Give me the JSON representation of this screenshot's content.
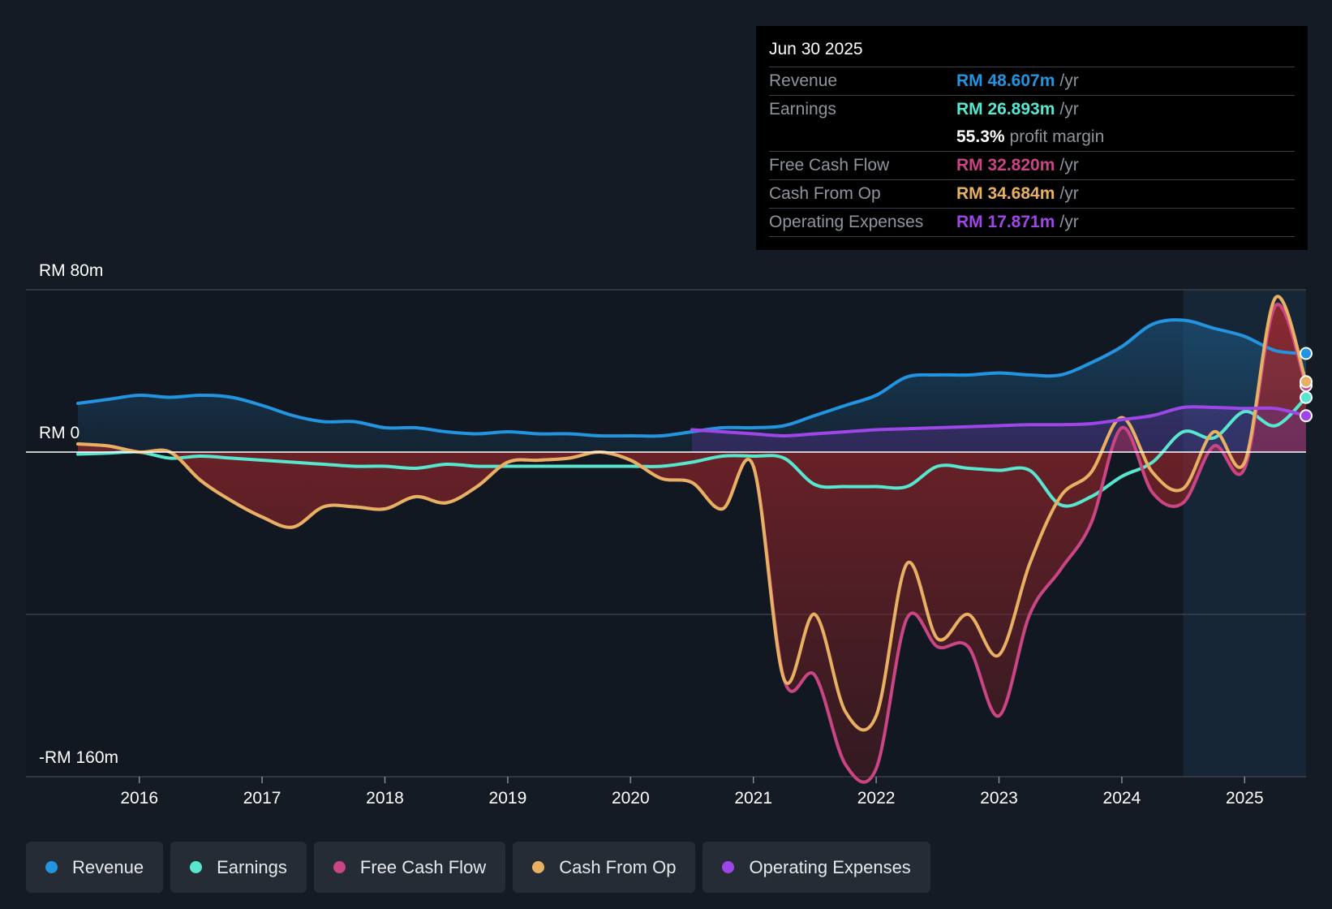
{
  "chart_data": {
    "type": "line",
    "title": "",
    "ylim": [
      -160,
      80
    ],
    "y_axis_labels": [
      "RM 80m",
      "RM 0",
      "-RM 160m"
    ],
    "x_ticks": [
      2016,
      2017,
      2018,
      2019,
      2020,
      2021,
      2022,
      2023,
      2024,
      2025
    ],
    "x_range": [
      2015.5,
      2025.5
    ],
    "forecast_start": 2024.5,
    "series": [
      {
        "name": "Revenue",
        "color": "#2394df",
        "fill": true,
        "x": [
          2015.5,
          2015.75,
          2016.0,
          2016.25,
          2016.5,
          2016.75,
          2017.0,
          2017.25,
          2017.5,
          2017.75,
          2018.0,
          2018.25,
          2018.5,
          2018.75,
          2019.0,
          2019.25,
          2019.5,
          2019.75,
          2020.0,
          2020.25,
          2020.5,
          2020.75,
          2021.0,
          2021.25,
          2021.5,
          2021.75,
          2022.0,
          2022.25,
          2022.5,
          2022.75,
          2023.0,
          2023.25,
          2023.5,
          2023.75,
          2024.0,
          2024.25,
          2024.5,
          2024.75,
          2025.0,
          2025.25,
          2025.5
        ],
        "values": [
          24,
          26,
          28,
          27,
          28,
          27,
          23,
          18,
          15,
          15,
          12,
          12,
          10,
          9,
          10,
          9,
          9,
          8,
          8,
          8,
          10,
          12,
          12,
          13,
          18,
          23,
          28,
          37,
          38,
          38,
          39,
          38,
          38,
          44,
          52,
          63,
          65,
          61,
          57,
          50,
          48.6
        ]
      },
      {
        "name": "Earnings",
        "color": "#58e6cf",
        "fill": false,
        "x": [
          2015.5,
          2015.75,
          2016.0,
          2016.25,
          2016.5,
          2016.75,
          2017.0,
          2017.25,
          2017.5,
          2017.75,
          2018.0,
          2018.25,
          2018.5,
          2018.75,
          2019.0,
          2019.25,
          2019.5,
          2019.75,
          2020.0,
          2020.25,
          2020.5,
          2020.75,
          2021.0,
          2021.25,
          2021.5,
          2021.75,
          2022.0,
          2022.25,
          2022.5,
          2022.75,
          2023.0,
          2023.25,
          2023.5,
          2023.75,
          2024.0,
          2024.25,
          2024.5,
          2024.75,
          2025.0,
          2025.25,
          2025.5
        ],
        "values": [
          -1,
          -0.5,
          0,
          -3,
          -2,
          -3,
          -4,
          -5,
          -6,
          -7,
          -7,
          -8,
          -6,
          -7,
          -7,
          -7,
          -7,
          -7,
          -7,
          -7,
          -5,
          -2,
          -2,
          -3,
          -16,
          -17,
          -17,
          -17,
          -7,
          -8,
          -9,
          -9,
          -26,
          -22,
          -12,
          -5,
          10,
          7,
          20,
          13,
          26.9
        ]
      },
      {
        "name": "Free Cash Flow",
        "color": "#c94583",
        "fill": true,
        "x": [
          2015.5,
          2015.75,
          2016.0,
          2016.25,
          2016.5,
          2016.75,
          2017.0,
          2017.25,
          2017.5,
          2017.75,
          2018.0,
          2018.25,
          2018.5,
          2018.75,
          2019.0,
          2019.25,
          2019.5,
          2019.75,
          2020.0,
          2020.25,
          2020.5,
          2020.75,
          2021.0,
          2021.25,
          2021.5,
          2021.75,
          2022.0,
          2022.25,
          2022.5,
          2022.75,
          2023.0,
          2023.25,
          2023.5,
          2023.75,
          2024.0,
          2024.25,
          2024.5,
          2024.75,
          2025.0,
          2025.25,
          2025.5
        ],
        "values": [
          4,
          3,
          0,
          0,
          -14,
          -24,
          -32,
          -37,
          -27,
          -27,
          -28,
          -22,
          -25,
          -17,
          -5,
          -4,
          -3,
          0,
          -4,
          -13,
          -15,
          -28,
          -7,
          -112,
          -110,
          -154,
          -156,
          -82,
          -96,
          -96,
          -130,
          -80,
          -58,
          -35,
          12,
          -20,
          -25,
          3,
          -8,
          72,
          32.8
        ]
      },
      {
        "name": "Cash From Op",
        "color": "#e8b062",
        "fill": false,
        "x": [
          2015.5,
          2015.75,
          2016.0,
          2016.25,
          2016.5,
          2016.75,
          2017.0,
          2017.25,
          2017.5,
          2017.75,
          2018.0,
          2018.25,
          2018.5,
          2018.75,
          2019.0,
          2019.25,
          2019.5,
          2019.75,
          2020.0,
          2020.25,
          2020.5,
          2020.75,
          2021.0,
          2021.25,
          2021.5,
          2021.75,
          2022.0,
          2022.25,
          2022.5,
          2022.75,
          2023.0,
          2023.25,
          2023.5,
          2023.75,
          2024.0,
          2024.25,
          2024.5,
          2024.75,
          2025.0,
          2025.25,
          2025.5
        ],
        "values": [
          4,
          3,
          0,
          0,
          -14,
          -24,
          -32,
          -37,
          -27,
          -27,
          -28,
          -22,
          -25,
          -17,
          -5,
          -4,
          -3,
          0,
          -4,
          -13,
          -15,
          -28,
          -7,
          -112,
          -80,
          -128,
          -130,
          -55,
          -92,
          -80,
          -100,
          -55,
          -22,
          -10,
          17,
          -10,
          -18,
          10,
          -5,
          76,
          34.7
        ]
      },
      {
        "name": "Operating Expenses",
        "color": "#9e46e8",
        "fill": true,
        "x": [
          2020.5,
          2020.75,
          2021.0,
          2021.25,
          2021.5,
          2021.75,
          2022.0,
          2022.25,
          2022.5,
          2022.75,
          2023.0,
          2023.25,
          2023.5,
          2023.75,
          2024.0,
          2024.25,
          2024.5,
          2024.75,
          2025.0,
          2025.25,
          2025.5
        ],
        "values": [
          11,
          10,
          9,
          8,
          9,
          10,
          11,
          11.5,
          12,
          12.5,
          13,
          13.5,
          13.5,
          14,
          16,
          18,
          22,
          22,
          21.5,
          21.5,
          17.9
        ]
      }
    ]
  },
  "tooltip": {
    "date": "Jun 30 2025",
    "rows": [
      {
        "label": "Revenue",
        "value": "RM 48.607m",
        "unit": "/yr",
        "color": "#2394df"
      },
      {
        "label": "Earnings",
        "value": "RM 26.893m",
        "unit": "/yr",
        "color": "#58e6cf"
      },
      {
        "label": "",
        "value": "55.3%",
        "unit": "profit margin",
        "color": "#ffffff"
      },
      {
        "label": "Free Cash Flow",
        "value": "RM 32.820m",
        "unit": "/yr",
        "color": "#c94583"
      },
      {
        "label": "Cash From Op",
        "value": "RM 34.684m",
        "unit": "/yr",
        "color": "#e8b062"
      },
      {
        "label": "Operating Expenses",
        "value": "RM 17.871m",
        "unit": "/yr",
        "color": "#9e46e8"
      }
    ]
  },
  "legend": [
    {
      "label": "Revenue",
      "color": "#2394df"
    },
    {
      "label": "Earnings",
      "color": "#58e6cf"
    },
    {
      "label": "Free Cash Flow",
      "color": "#c94583"
    },
    {
      "label": "Cash From Op",
      "color": "#e8b062"
    },
    {
      "label": "Operating Expenses",
      "color": "#9e46e8"
    }
  ]
}
